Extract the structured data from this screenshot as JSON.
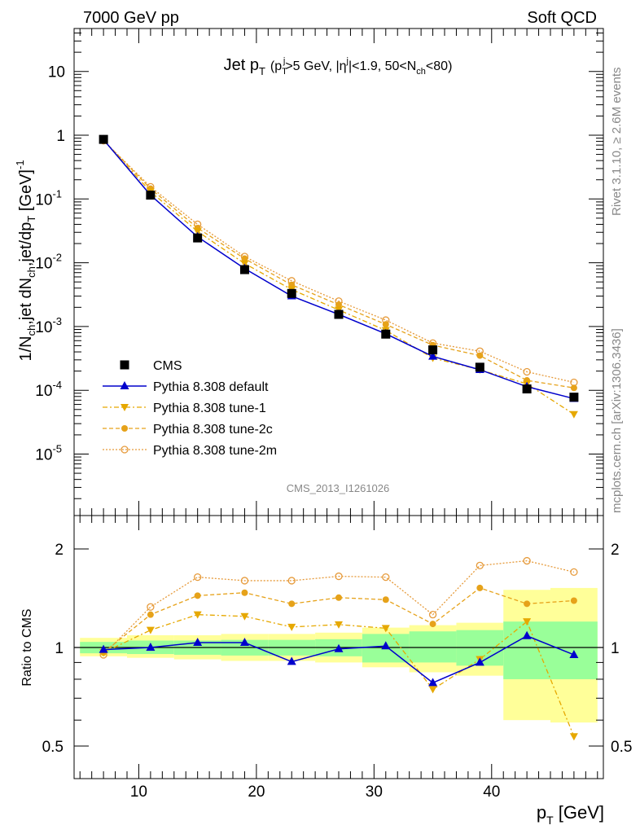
{
  "header": {
    "energy_label": "7000 GeV pp",
    "process_label": "Soft QCD"
  },
  "side_labels": {
    "rivet": "Rivet 3.1.10, ≥ 2.6M events",
    "source": "mcplots.cern.ch [arXiv:1306.3436]"
  },
  "analysis_id": "CMS_2013_I1261026",
  "chart_data": [
    {
      "type": "line",
      "panel": "main",
      "title": "Jet p_T (p_T^j>5 GeV, |η^j|<1.9, 50<N_ch<80)",
      "xlabel": "p_T [GeV]",
      "ylabel": "1/N_ch,jet dN_ch,jet/dp_T [GeV]^-1",
      "yscale": "log",
      "ylim": [
        1e-06,
        50
      ],
      "xlim": [
        4.5,
        49.5
      ],
      "y_tick_labels": [
        "10^-5",
        "10^-4",
        "10^-3",
        "10^-2",
        "10^-1",
        "1",
        "10"
      ],
      "legend_position": "lower-left",
      "x": [
        7,
        11,
        15,
        19,
        23,
        27,
        31,
        35,
        39,
        43,
        47
      ],
      "series": [
        {
          "name": "CMS",
          "marker": "square",
          "color": "#000000",
          "values": [
            0.86,
            0.115,
            0.0245,
            0.0078,
            0.0033,
            0.00155,
            0.00076,
            0.00043,
            0.00023,
            0.000105,
            7.8e-05
          ]
        },
        {
          "name": "Pythia 8.308 default",
          "marker": "triangle-up",
          "line": "solid",
          "color": "#0000cc",
          "values": [
            0.85,
            0.115,
            0.0255,
            0.0081,
            0.003,
            0.00155,
            0.00077,
            0.00034,
            0.00021,
            0.000114,
            7.4e-05
          ]
        },
        {
          "name": "Pythia 8.308 tune-1",
          "marker": "triangle-down",
          "line": "dash-dot",
          "color": "#e6a800",
          "values": [
            0.83,
            0.13,
            0.031,
            0.0097,
            0.0038,
            0.00182,
            0.00087,
            0.00032,
            0.00021,
            0.000126,
            4.2e-05
          ]
        },
        {
          "name": "Pythia 8.308 tune-2c",
          "marker": "circle",
          "line": "dashed",
          "color": "#e6a21a",
          "values": [
            0.83,
            0.145,
            0.035,
            0.0116,
            0.0045,
            0.0022,
            0.00108,
            0.00051,
            0.00035,
            0.000143,
            0.000109
          ]
        },
        {
          "name": "Pythia 8.308 tune-2m",
          "marker": "circle-open",
          "line": "dotted",
          "color": "#e69a3a",
          "values": [
            0.82,
            0.155,
            0.04,
            0.0125,
            0.0052,
            0.0025,
            0.00126,
            0.00055,
            0.00041,
            0.000195,
            0.000133
          ]
        }
      ]
    },
    {
      "type": "line",
      "panel": "ratio",
      "xlabel": "p_T [GeV]",
      "ylabel": "Ratio to CMS",
      "yscale": "log",
      "ylim": [
        0.42,
        2.4
      ],
      "xlim": [
        4.5,
        49.5
      ],
      "y_tick_labels": [
        "0.5",
        "1",
        "2"
      ],
      "x_tick_labels": [
        "10",
        "20",
        "30",
        "40"
      ],
      "bins": [
        [
          5,
          9
        ],
        [
          9,
          13
        ],
        [
          13,
          17
        ],
        [
          17,
          21
        ],
        [
          21,
          25
        ],
        [
          25,
          29
        ],
        [
          29,
          33
        ],
        [
          33,
          37
        ],
        [
          37,
          41
        ],
        [
          41,
          45
        ],
        [
          45,
          49
        ]
      ],
      "band_inner": [
        [
          0.96,
          1.04
        ],
        [
          0.955,
          1.05
        ],
        [
          0.95,
          1.05
        ],
        [
          0.945,
          1.055
        ],
        [
          0.945,
          1.055
        ],
        [
          0.94,
          1.06
        ],
        [
          0.9,
          1.1
        ],
        [
          0.9,
          1.12
        ],
        [
          0.88,
          1.13
        ],
        [
          0.8,
          1.2
        ],
        [
          0.8,
          1.2
        ]
      ],
      "band_outer": [
        [
          0.94,
          1.07
        ],
        [
          0.93,
          1.09
        ],
        [
          0.92,
          1.09
        ],
        [
          0.91,
          1.1
        ],
        [
          0.91,
          1.1
        ],
        [
          0.9,
          1.11
        ],
        [
          0.87,
          1.15
        ],
        [
          0.84,
          1.17
        ],
        [
          0.82,
          1.19
        ],
        [
          0.6,
          1.5
        ],
        [
          0.59,
          1.52
        ]
      ],
      "x": [
        7,
        11,
        15,
        19,
        23,
        27,
        31,
        35,
        39,
        43,
        47
      ],
      "series": [
        {
          "name": "Pythia 8.308 default",
          "color": "#0000cc",
          "values": [
            0.985,
            1.0,
            1.035,
            1.035,
            0.905,
            0.99,
            1.01,
            0.78,
            0.9,
            1.085,
            0.95
          ]
        },
        {
          "name": "Pythia 8.308 tune-1",
          "color": "#e6a800",
          "values": [
            0.965,
            1.13,
            1.26,
            1.245,
            1.155,
            1.175,
            1.145,
            0.745,
            0.92,
            1.2,
            0.535
          ]
        },
        {
          "name": "Pythia 8.308 tune-2c",
          "color": "#e6a21a",
          "values": [
            0.965,
            1.26,
            1.44,
            1.47,
            1.36,
            1.42,
            1.4,
            1.18,
            1.52,
            1.36,
            1.39
          ]
        },
        {
          "name": "Pythia 8.308 tune-2m",
          "color": "#e69a3a",
          "values": [
            0.95,
            1.33,
            1.64,
            1.6,
            1.6,
            1.65,
            1.64,
            1.26,
            1.78,
            1.84,
            1.7
          ]
        }
      ]
    }
  ]
}
